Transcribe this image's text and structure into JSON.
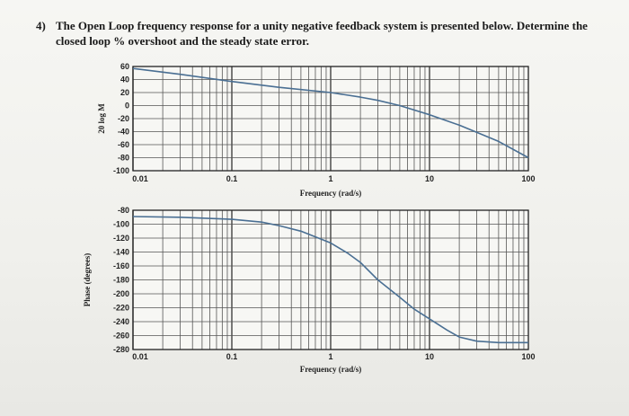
{
  "question": {
    "number": "4)",
    "line1": "The Open Loop frequency response for a unity negative feedback system is presented below. Determine the",
    "line2": "closed loop % overshoot and the steady state error."
  },
  "chart_data": [
    {
      "type": "line",
      "title": "",
      "xlabel": "Frequency (rad/s)",
      "ylabel": "20 log M",
      "xscale": "log",
      "xlim": [
        0.01,
        100
      ],
      "ylim": [
        -100,
        60
      ],
      "xticks": [
        "0.01",
        "0.1",
        "1",
        "10",
        "100"
      ],
      "yticks": [
        "60",
        "40",
        "20",
        "0",
        "-20",
        "-40",
        "-60",
        "-80",
        "-100"
      ],
      "grid": true,
      "series": [
        {
          "x": [
            0.01,
            0.03,
            0.1,
            0.3,
            1,
            2,
            3,
            5,
            10,
            20,
            30,
            50,
            100
          ],
          "y": [
            57,
            48,
            37,
            28,
            20,
            13,
            8,
            0,
            -14,
            -30,
            -41,
            -55,
            -80
          ]
        }
      ]
    },
    {
      "type": "line",
      "title": "",
      "xlabel": "Frequency (rad/s)",
      "ylabel": "Phase (degrees)",
      "xscale": "log",
      "xlim": [
        0.01,
        100
      ],
      "ylim": [
        -280,
        -80
      ],
      "xticks": [
        "0.01",
        "0.1",
        "1",
        "10",
        "100"
      ],
      "yticks": [
        "-80",
        "-100",
        "-120",
        "-140",
        "-160",
        "-180",
        "-200",
        "-220",
        "-240",
        "-260",
        "-280"
      ],
      "grid": true,
      "series": [
        {
          "x": [
            0.01,
            0.03,
            0.1,
            0.2,
            0.3,
            0.5,
            1,
            1.5,
            2,
            3,
            5,
            7,
            10,
            15,
            20,
            30,
            50,
            100
          ],
          "y": [
            -89,
            -90,
            -93,
            -97,
            -102,
            -110,
            -127,
            -142,
            -155,
            -180,
            -205,
            -222,
            -236,
            -252,
            -262,
            -268,
            -270,
            -270
          ]
        }
      ]
    }
  ]
}
